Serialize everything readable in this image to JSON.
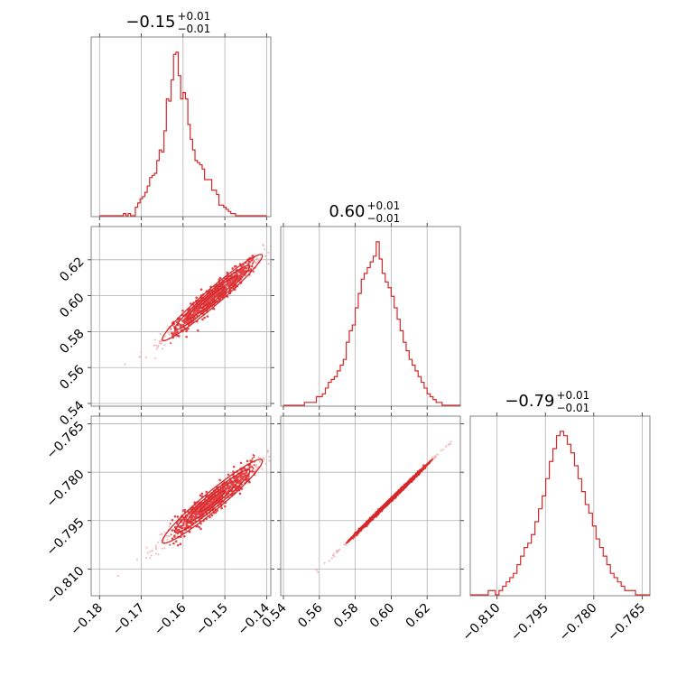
{
  "chart_data": {
    "type": "corner",
    "color": "#d62728",
    "parameters": [
      {
        "title": {
          "median": "−0.15",
          "plus": "+0.01",
          "minus": "−0.01"
        },
        "range": [
          -0.182,
          -0.139
        ],
        "ticks": [
          {
            "value": -0.18,
            "label": "−0.18"
          },
          {
            "value": -0.17,
            "label": "−0.17"
          },
          {
            "value": -0.16,
            "label": "−0.16"
          },
          {
            "value": -0.15,
            "label": "−0.15"
          },
          {
            "value": -0.14,
            "label": "−0.14"
          }
        ],
        "histogram": [
          0,
          0,
          0,
          0,
          0,
          0,
          0,
          0,
          0,
          0,
          1,
          0,
          1,
          0,
          0,
          4,
          6,
          8,
          9,
          11,
          14,
          18,
          19,
          20,
          26,
          31,
          30,
          40,
          55,
          54,
          64,
          76,
          77,
          66,
          55,
          58,
          55,
          43,
          36,
          31,
          26,
          25,
          24,
          22,
          17,
          17,
          17,
          12,
          12,
          10,
          5,
          5,
          4,
          3,
          2,
          1,
          1,
          0,
          0,
          0,
          0,
          0,
          0,
          0,
          0,
          0,
          0,
          0,
          0,
          0
        ],
        "hist_range": [
          -0.18,
          -0.14
        ]
      },
      {
        "title": {
          "median": "0.60",
          "plus": "+0.01",
          "minus": "−0.01"
        },
        "range": [
          0.5385,
          0.6385
        ],
        "ticks": [
          {
            "value": 0.54,
            "label": "0.54"
          },
          {
            "value": 0.56,
            "label": "0.56"
          },
          {
            "value": 0.58,
            "label": "0.58"
          },
          {
            "value": 0.6,
            "label": "0.60"
          },
          {
            "value": 0.62,
            "label": "0.62"
          }
        ],
        "histogram": [
          0,
          0,
          0,
          0,
          0,
          0,
          0,
          1,
          1,
          1,
          1,
          3,
          3,
          4,
          6,
          8,
          9,
          10,
          12,
          14,
          16,
          22,
          26,
          28,
          34,
          39,
          44,
          46,
          48,
          50,
          52,
          57,
          51,
          46,
          43,
          41,
          38,
          34,
          30,
          26,
          22,
          19,
          16,
          14,
          12,
          10,
          8,
          6,
          4,
          3,
          2,
          1,
          1,
          0,
          0,
          0,
          0,
          0,
          0,
          0
        ],
        "hist_range": [
          0.54,
          0.64
        ]
      },
      {
        "title": {
          "median": "−0.79",
          "plus": "+0.01",
          "minus": "−0.01"
        },
        "range": [
          -0.8183,
          -0.7626
        ],
        "ticks": [
          {
            "value": -0.81,
            "label": "−0.810"
          },
          {
            "value": -0.795,
            "label": "−0.795"
          },
          {
            "value": -0.78,
            "label": "−0.780"
          },
          {
            "value": -0.765,
            "label": "−0.765"
          }
        ],
        "histogram": [
          0,
          0,
          0,
          0,
          0,
          1,
          1,
          0,
          1,
          2,
          3,
          4,
          5,
          7,
          9,
          11,
          12,
          14,
          17,
          20,
          23,
          27,
          31,
          34,
          37,
          38,
          37,
          35,
          33,
          30,
          27,
          24,
          21,
          19,
          16,
          13,
          11,
          9,
          7,
          5,
          4,
          3,
          2,
          1,
          1,
          1,
          0,
          0,
          0,
          0
        ],
        "hist_range": [
          -0.8183,
          -0.7626
        ]
      }
    ],
    "correlations": {
      "0-1": 0.97,
      "0-2": 0.96,
      "1-2": 0.999
    },
    "means": [
      -0.153,
      0.599,
      -0.789
    ],
    "sigmas": [
      0.006,
      0.012,
      0.0065
    ],
    "grid": true
  }
}
